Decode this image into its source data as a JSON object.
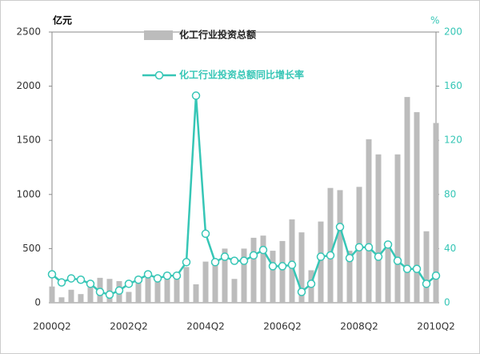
{
  "chart_data": {
    "type": "bar_line",
    "y_unit": "亿元",
    "y2_unit": "%",
    "categories": [
      "2000Q2",
      null,
      null,
      null,
      null,
      null,
      null,
      null,
      "2002Q2",
      null,
      null,
      null,
      null,
      null,
      null,
      null,
      "2004Q2",
      null,
      null,
      null,
      null,
      null,
      null,
      null,
      "2006Q2",
      null,
      null,
      null,
      null,
      null,
      null,
      null,
      "2008Q2",
      null,
      null,
      null,
      null,
      null,
      null,
      null,
      "2010Q2"
    ],
    "series": [
      {
        "name": "化工行业投资总额",
        "color": "#bcbcbc",
        "kind": "bar",
        "values": [
          150,
          50,
          120,
          80,
          200,
          230,
          220,
          200,
          100,
          200,
          230,
          200,
          280,
          280,
          330,
          170,
          380,
          400,
          500,
          220,
          500,
          600,
          620,
          480,
          570,
          770,
          650,
          300,
          750,
          1060,
          1040,
          480,
          1070,
          1510,
          1370,
          500,
          1370,
          1900,
          1760,
          660,
          1660
        ]
      },
      {
        "name": "化工行业投资总额同比增长率",
        "color": "#36c6b6",
        "kind": "line",
        "axis": "y2",
        "values": [
          21,
          15,
          18,
          17,
          14,
          8,
          6,
          9,
          14,
          17,
          21,
          18,
          20,
          20,
          30,
          153,
          51,
          30,
          34,
          31,
          31,
          35,
          39,
          27,
          27,
          28,
          8,
          14,
          34,
          35,
          56,
          33,
          41,
          41,
          34,
          43,
          31,
          25,
          25,
          14,
          20
        ]
      }
    ],
    "ylim": [
      0,
      2500
    ],
    "yticks": [
      0,
      500,
      1000,
      1500,
      2000,
      2500
    ],
    "y2lim": [
      0,
      200
    ],
    "y2ticks": [
      0,
      40,
      80,
      120,
      160,
      200
    ]
  }
}
